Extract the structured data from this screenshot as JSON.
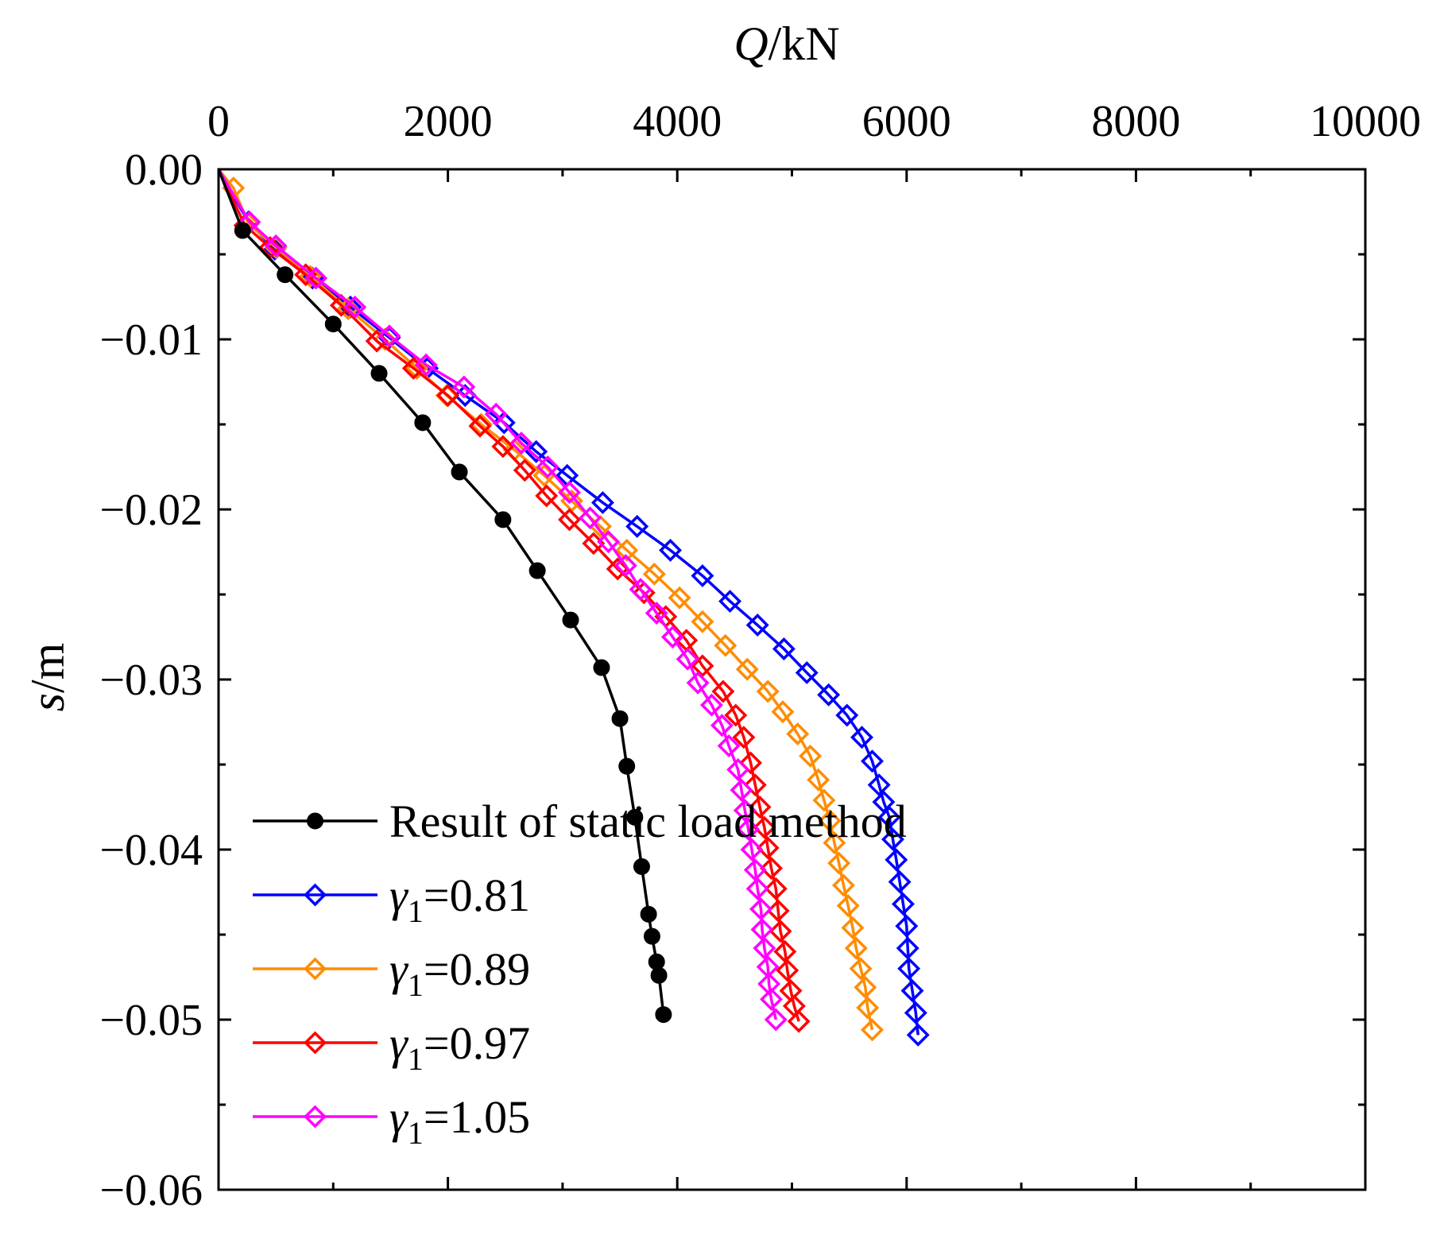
{
  "chart_data": {
    "type": "line",
    "xlabel": {
      "var": "Q",
      "unit": "/kN"
    },
    "ylabel": {
      "var": "s",
      "unit": "/m"
    },
    "xlim": [
      0,
      10000
    ],
    "ylim": [
      -0.06,
      0
    ],
    "x_axis_position": "top",
    "x_ticks": [
      "0",
      "2000",
      "4000",
      "6000",
      "8000",
      "10000"
    ],
    "y_ticks": [
      "0.00",
      "−0.01",
      "−0.02",
      "−0.03",
      "−0.04",
      "−0.05",
      "−0.06"
    ],
    "grid": false,
    "legend_position": "bottom-left",
    "series": [
      {
        "name": "Result of static load method",
        "color": "#000000",
        "marker": "filled-circle",
        "points": [
          [
            0,
            0
          ],
          [
            210,
            -0.0036
          ],
          [
            580,
            -0.0062
          ],
          [
            1000,
            -0.0091
          ],
          [
            1400,
            -0.012
          ],
          [
            1780,
            -0.0149
          ],
          [
            2100,
            -0.0178
          ],
          [
            2480,
            -0.0206
          ],
          [
            2780,
            -0.0236
          ],
          [
            3070,
            -0.0265
          ],
          [
            3340,
            -0.0293
          ],
          [
            3500,
            -0.0323
          ],
          [
            3560,
            -0.0351
          ],
          [
            3630,
            -0.0381
          ],
          [
            3690,
            -0.041
          ],
          [
            3750,
            -0.0438
          ],
          [
            3780,
            -0.0451
          ],
          [
            3820,
            -0.0466
          ],
          [
            3840,
            -0.0474
          ],
          [
            3880,
            -0.0497
          ]
        ]
      },
      {
        "name": "γ1=0.81",
        "label": {
          "sym": "γ",
          "sub": "1",
          "val": "=0.81"
        },
        "color": "#0000ff",
        "marker": "open-diamond",
        "points": [
          [
            0,
            0
          ],
          [
            260,
            -0.0031
          ],
          [
            490,
            -0.0047
          ],
          [
            820,
            -0.0064
          ],
          [
            1150,
            -0.0081
          ],
          [
            1490,
            -0.0099
          ],
          [
            1820,
            -0.0117
          ],
          [
            2150,
            -0.0133
          ],
          [
            2490,
            -0.0149
          ],
          [
            2770,
            -0.0166
          ],
          [
            3040,
            -0.018
          ],
          [
            3350,
            -0.0196
          ],
          [
            3650,
            -0.021
          ],
          [
            3940,
            -0.0224
          ],
          [
            4220,
            -0.0239
          ],
          [
            4460,
            -0.0254
          ],
          [
            4700,
            -0.0268
          ],
          [
            4930,
            -0.0282
          ],
          [
            5130,
            -0.0296
          ],
          [
            5320,
            -0.0309
          ],
          [
            5480,
            -0.0321
          ],
          [
            5610,
            -0.0334
          ],
          [
            5700,
            -0.0348
          ],
          [
            5760,
            -0.0362
          ],
          [
            5800,
            -0.0372
          ],
          [
            5850,
            -0.0381
          ],
          [
            5880,
            -0.0394
          ],
          [
            5910,
            -0.0406
          ],
          [
            5940,
            -0.0419
          ],
          [
            5970,
            -0.0432
          ],
          [
            6000,
            -0.0445
          ],
          [
            6010,
            -0.0458
          ],
          [
            6020,
            -0.047
          ],
          [
            6050,
            -0.0483
          ],
          [
            6080,
            -0.0496
          ],
          [
            6100,
            -0.0509
          ]
        ]
      },
      {
        "name": "γ1=0.89",
        "label": {
          "sym": "γ",
          "sub": "1",
          "val": "=0.89"
        },
        "color": "#ff8c00",
        "marker": "open-diamond",
        "points": [
          [
            0,
            0
          ],
          [
            130,
            -0.0011
          ],
          [
            260,
            -0.0032
          ],
          [
            500,
            -0.0046
          ],
          [
            800,
            -0.0063
          ],
          [
            1130,
            -0.0082
          ],
          [
            1450,
            -0.01
          ],
          [
            1730,
            -0.0117
          ],
          [
            1990,
            -0.0133
          ],
          [
            2290,
            -0.015
          ],
          [
            2580,
            -0.0165
          ],
          [
            2840,
            -0.018
          ],
          [
            3080,
            -0.0195
          ],
          [
            3330,
            -0.021
          ],
          [
            3560,
            -0.0224
          ],
          [
            3800,
            -0.0238
          ],
          [
            4020,
            -0.0252
          ],
          [
            4220,
            -0.0266
          ],
          [
            4420,
            -0.028
          ],
          [
            4610,
            -0.0294
          ],
          [
            4790,
            -0.0307
          ],
          [
            4920,
            -0.0319
          ],
          [
            5050,
            -0.0332
          ],
          [
            5160,
            -0.0345
          ],
          [
            5230,
            -0.0359
          ],
          [
            5280,
            -0.0371
          ],
          [
            5330,
            -0.0383
          ],
          [
            5370,
            -0.0396
          ],
          [
            5410,
            -0.0408
          ],
          [
            5450,
            -0.0421
          ],
          [
            5490,
            -0.0433
          ],
          [
            5530,
            -0.0446
          ],
          [
            5560,
            -0.0458
          ],
          [
            5600,
            -0.047
          ],
          [
            5640,
            -0.0481
          ],
          [
            5660,
            -0.0493
          ],
          [
            5700,
            -0.0506
          ]
        ]
      },
      {
        "name": "γ1=0.97",
        "label": {
          "sym": "γ",
          "sub": "1",
          "val": "=0.97"
        },
        "color": "#ff0000",
        "marker": "open-diamond",
        "points": [
          [
            0,
            0
          ],
          [
            230,
            -0.0033
          ],
          [
            450,
            -0.0046
          ],
          [
            760,
            -0.0062
          ],
          [
            1070,
            -0.008
          ],
          [
            1380,
            -0.0101
          ],
          [
            1700,
            -0.0117
          ],
          [
            2000,
            -0.0133
          ],
          [
            2280,
            -0.0151
          ],
          [
            2480,
            -0.0163
          ],
          [
            2670,
            -0.0177
          ],
          [
            2860,
            -0.0192
          ],
          [
            3060,
            -0.0206
          ],
          [
            3270,
            -0.022
          ],
          [
            3480,
            -0.0235
          ],
          [
            3710,
            -0.0249
          ],
          [
            3900,
            -0.0263
          ],
          [
            4080,
            -0.0277
          ],
          [
            4220,
            -0.0292
          ],
          [
            4400,
            -0.0307
          ],
          [
            4510,
            -0.0321
          ],
          [
            4580,
            -0.0334
          ],
          [
            4640,
            -0.0349
          ],
          [
            4680,
            -0.0362
          ],
          [
            4720,
            -0.0375
          ],
          [
            4760,
            -0.0387
          ],
          [
            4790,
            -0.0399
          ],
          [
            4820,
            -0.0411
          ],
          [
            4860,
            -0.0423
          ],
          [
            4880,
            -0.0436
          ],
          [
            4900,
            -0.0448
          ],
          [
            4940,
            -0.046
          ],
          [
            4960,
            -0.0471
          ],
          [
            4990,
            -0.0483
          ],
          [
            5020,
            -0.0492
          ],
          [
            5060,
            -0.0501
          ]
        ]
      },
      {
        "name": "γ1=1.05",
        "label": {
          "sym": "γ",
          "sub": "1",
          "val": "=1.05"
        },
        "color": "#ff00ff",
        "marker": "open-diamond",
        "points": [
          [
            0,
            0
          ],
          [
            270,
            -0.0031
          ],
          [
            500,
            -0.0045
          ],
          [
            850,
            -0.0064
          ],
          [
            1190,
            -0.0081
          ],
          [
            1490,
            -0.0098
          ],
          [
            1810,
            -0.0115
          ],
          [
            2140,
            -0.0128
          ],
          [
            2420,
            -0.0144
          ],
          [
            2640,
            -0.0161
          ],
          [
            2870,
            -0.0175
          ],
          [
            3060,
            -0.019
          ],
          [
            3240,
            -0.0205
          ],
          [
            3400,
            -0.0219
          ],
          [
            3550,
            -0.0233
          ],
          [
            3680,
            -0.0247
          ],
          [
            3820,
            -0.0261
          ],
          [
            3960,
            -0.0275
          ],
          [
            4090,
            -0.0288
          ],
          [
            4180,
            -0.0302
          ],
          [
            4300,
            -0.0315
          ],
          [
            4390,
            -0.0327
          ],
          [
            4450,
            -0.0339
          ],
          [
            4530,
            -0.0353
          ],
          [
            4560,
            -0.0365
          ],
          [
            4590,
            -0.0377
          ],
          [
            4620,
            -0.0388
          ],
          [
            4650,
            -0.04
          ],
          [
            4680,
            -0.0412
          ],
          [
            4700,
            -0.0423
          ],
          [
            4730,
            -0.0435
          ],
          [
            4740,
            -0.0447
          ],
          [
            4760,
            -0.0458
          ],
          [
            4790,
            -0.0469
          ],
          [
            4800,
            -0.0479
          ],
          [
            4820,
            -0.0488
          ],
          [
            4860,
            -0.05
          ]
        ]
      }
    ]
  }
}
